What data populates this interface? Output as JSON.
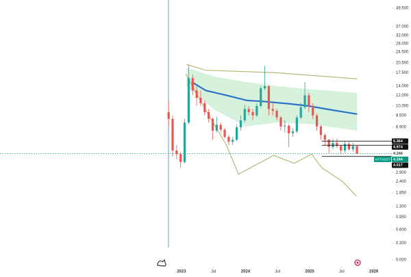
{
  "chart_data": {
    "type": "candlestick",
    "yscale": "log",
    "xlim": [
      2020.17,
      2026.26
    ],
    "ylim": [
      0,
      49.5
    ],
    "xticks": [
      {
        "value": 2023,
        "label": "2023"
      },
      {
        "value": 2023.5,
        "label": "Jul"
      },
      {
        "value": 2024,
        "label": "2024"
      },
      {
        "value": 2024.5,
        "label": "Jul"
      },
      {
        "value": 2025,
        "label": "2025"
      },
      {
        "value": 2025.5,
        "label": "Jul"
      },
      {
        "value": 2026,
        "label": "2026"
      }
    ],
    "yticks": [
      {
        "value": 49.5,
        "label": "49.500"
      },
      {
        "value": 37,
        "label": "37.000"
      },
      {
        "value": 32,
        "label": "32.000"
      },
      {
        "value": 28,
        "label": "28.000"
      },
      {
        "value": 24.5,
        "label": "24.500"
      },
      {
        "value": 20.5,
        "label": "20.500"
      },
      {
        "value": 17.5,
        "label": "17.500"
      },
      {
        "value": 14,
        "label": "14.000"
      },
      {
        "value": 12,
        "label": "12.000"
      },
      {
        "value": 10,
        "label": "10.000"
      },
      {
        "value": 8.5,
        "label": "8.500"
      },
      {
        "value": 6.9,
        "label": "6.900"
      },
      {
        "value": 2.9,
        "label": "2.900"
      },
      {
        "value": 2.4,
        "label": "2.400"
      },
      {
        "value": 1.85,
        "label": "1.850"
      },
      {
        "value": 1.3,
        "label": "1.300"
      },
      {
        "value": 0.95,
        "label": "0.950"
      },
      {
        "value": 0.6,
        "label": "0.600"
      },
      {
        "value": 0.3,
        "label": "0.300"
      },
      {
        "value": 0,
        "label": "0.000"
      }
    ],
    "up_color": "#26a69a",
    "down_color": "#ef5350",
    "x": [
      2022.8,
      2022.8625,
      2022.925,
      2022.9875,
      2023.05,
      2023.1125,
      2023.175,
      2023.2375,
      2023.3,
      2023.3625,
      2023.425,
      2023.4875,
      2023.55,
      2023.6125,
      2023.675,
      2023.7375,
      2023.8,
      2023.8625,
      2023.925,
      2023.9875,
      2024.05,
      2024.1125,
      2024.175,
      2024.2375,
      2024.3,
      2024.3625,
      2024.425,
      2024.4875,
      2024.55,
      2024.6125,
      2024.675,
      2024.7375,
      2024.8,
      2024.8625,
      2024.925,
      2024.9875,
      2025.05,
      2025.1125,
      2025.175,
      2025.2375,
      2025.3,
      2025.3625,
      2025.425,
      2025.4875,
      2025.55,
      2025.6125,
      2025.675,
      2025.7375
    ],
    "open": [
      9,
      8,
      4.5,
      4.2,
      3.6,
      7.5,
      16,
      13,
      11.5,
      10.5,
      9,
      8,
      6.5,
      7.2,
      6.6,
      5.8,
      5.3,
      5.5,
      6.9,
      7.8,
      9.5,
      9,
      8.5,
      10,
      13.5,
      14,
      9.5,
      9.2,
      8.2,
      7,
      7.1,
      6.2,
      6.4,
      8.2,
      9.8,
      12,
      10,
      8.5,
      7,
      6,
      5.5,
      4.8,
      5.2,
      4.9,
      4.5,
      5.1,
      4.6,
      4.9
    ],
    "high": [
      11,
      8.5,
      5,
      4.4,
      8,
      20,
      17,
      14,
      13,
      11,
      9.5,
      8.2,
      8.3,
      7.5,
      6.8,
      6,
      5.8,
      7.2,
      8.5,
      10.2,
      10,
      9.5,
      10.5,
      14,
      19.5,
      14.2,
      10.5,
      9.5,
      8.4,
      7.8,
      7.3,
      6.8,
      8.5,
      10.5,
      15,
      12.5,
      10.5,
      8.8,
      7.2,
      6.2,
      5.6,
      5.6,
      5.6,
      5,
      5.4,
      5.3,
      5.2,
      5
    ],
    "low": [
      7,
      4,
      3.8,
      3.2,
      3.5,
      7.3,
      12,
      10,
      10,
      8.5,
      7.5,
      5.5,
      6.3,
      6.3,
      5.6,
      5,
      5,
      5.4,
      6.5,
      7.5,
      8.5,
      7.8,
      8.3,
      9.8,
      13,
      8.5,
      8.5,
      7.8,
      6.5,
      6.3,
      4.8,
      5.8,
      6.2,
      8,
      9.5,
      9,
      8,
      6.5,
      5.5,
      5,
      4.3,
      4.6,
      4.7,
      4.2,
      4.3,
      4.5,
      4.4,
      4.2
    ],
    "close": [
      8,
      4.5,
      4.2,
      3.6,
      7.5,
      16,
      13,
      11.5,
      10.5,
      9,
      8,
      6.5,
      7.2,
      6.6,
      5.8,
      5.3,
      5.5,
      6.9,
      7.8,
      9.5,
      9,
      8.5,
      10,
      13.5,
      14,
      9.5,
      9.2,
      8.2,
      7,
      7.1,
      6.2,
      6.4,
      8.2,
      9.8,
      12,
      10,
      8.5,
      7,
      6,
      5.5,
      4.8,
      5.2,
      4.9,
      4.5,
      5.1,
      4.6,
      4.9,
      4.244
    ],
    "band": {
      "color": "#c8ecd0",
      "x": [
        2023.08,
        2023.5,
        2024.0,
        2024.5,
        2025.0,
        2025.74
      ],
      "upper": [
        19,
        16.5,
        15,
        14,
        13.3,
        12.5
      ],
      "lower": [
        14,
        9.5,
        7,
        7.5,
        7.3,
        6.5
      ]
    },
    "lines": [
      {
        "color": "#2a72c8",
        "width": 2.2,
        "x": [
          2023.16,
          2023.38,
          2023.7,
          2024.02,
          2024.29,
          2024.67,
          2024.99,
          2025.31,
          2025.74
        ],
        "values": [
          15,
          13,
          12,
          11,
          10.8,
          10.4,
          10,
          9.4,
          8.7
        ]
      },
      {
        "color": "#b5b26a",
        "width": 1.1,
        "x": [
          2023.08,
          2023.38,
          2024.0,
          2024.45,
          2025.74
        ],
        "values": [
          20,
          18.2,
          17.8,
          17.5,
          15.8
        ]
      },
      {
        "color": "#b5b26a",
        "width": 1.1,
        "x": [
          2023.07,
          2023.37,
          2023.7,
          2023.89,
          2024.12,
          2024.44,
          2024.76,
          2025.03,
          2025.19,
          2025.51,
          2025.73
        ],
        "values": [
          17,
          9.5,
          5,
          2.8,
          3.3,
          4.1,
          3.5,
          4.2,
          3.2,
          2.4,
          1.7
        ]
      }
    ],
    "price_lines": [
      5.364,
      4.974,
      4.017
    ],
    "marker_price": 4.246,
    "last_price": {
      "value": 4.244,
      "label": "APTUSDT",
      "color": "#089981"
    }
  }
}
